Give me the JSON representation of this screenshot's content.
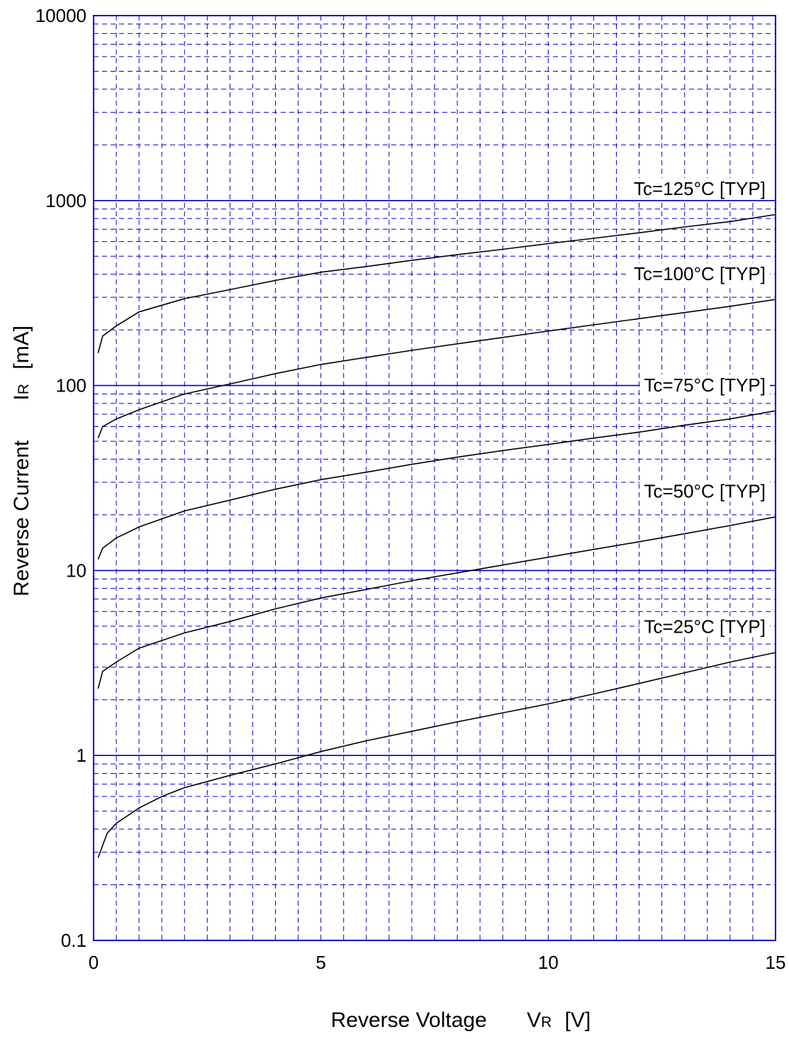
{
  "chart_data": {
    "type": "line",
    "xlabel": {
      "main": "Reverse Voltage",
      "symbol": "V",
      "subscript": "R",
      "unit": "[V]"
    },
    "ylabel": {
      "main": "Reverse Current",
      "symbol": "I",
      "subscript": "R",
      "unit": "[mA]"
    },
    "xlim": [
      0,
      15
    ],
    "ylim": [
      0.1,
      10000
    ],
    "y_scale": "log",
    "grid": true,
    "grid_color": "#0000cc",
    "line_color": "#000000",
    "x_ticks": [
      {
        "value": 0,
        "label": "0"
      },
      {
        "value": 5,
        "label": "5"
      },
      {
        "value": 10,
        "label": "10"
      },
      {
        "value": 15,
        "label": "15"
      }
    ],
    "y_ticks": [
      {
        "value": 0.1,
        "label": "0.1"
      },
      {
        "value": 1,
        "label": "1"
      },
      {
        "value": 10,
        "label": "10"
      },
      {
        "value": 100,
        "label": "100"
      },
      {
        "value": 1000,
        "label": "1000"
      },
      {
        "value": 10000,
        "label": "10000"
      }
    ],
    "series": [
      {
        "name": "Tc=125°C [TYP]",
        "x": [
          0.1,
          0.2,
          0.5,
          1,
          2,
          3,
          4,
          5,
          6,
          7,
          8,
          9,
          10,
          11,
          12,
          13,
          14,
          15
        ],
        "y": [
          150,
          185,
          210,
          250,
          295,
          330,
          370,
          410,
          440,
          475,
          510,
          545,
          585,
          625,
          670,
          720,
          770,
          840
        ]
      },
      {
        "name": "Tc=100°C [TYP]",
        "x": [
          0.1,
          0.2,
          0.5,
          1,
          2,
          3,
          4,
          5,
          6,
          7,
          8,
          9,
          10,
          11,
          12,
          13,
          14,
          15
        ],
        "y": [
          52,
          60,
          66,
          74,
          90,
          102,
          116,
          130,
          142,
          155,
          168,
          182,
          197,
          213,
          230,
          248,
          268,
          292
        ]
      },
      {
        "name": "Tc=75°C [TYP]",
        "x": [
          0.1,
          0.2,
          0.5,
          1,
          2,
          3,
          4,
          5,
          6,
          7,
          8,
          9,
          10,
          11,
          12,
          13,
          14,
          15
        ],
        "y": [
          11.5,
          13.2,
          15,
          17.2,
          21,
          24,
          27.5,
          31,
          34,
          37.5,
          41,
          44.5,
          48,
          52,
          56,
          61,
          66,
          73
        ]
      },
      {
        "name": "Tc=50°C [TYP]",
        "x": [
          0.1,
          0.2,
          0.5,
          1,
          2,
          3,
          4,
          5,
          6,
          7,
          8,
          9,
          10,
          11,
          12,
          13,
          14,
          15
        ],
        "y": [
          2.3,
          2.85,
          3.2,
          3.8,
          4.6,
          5.3,
          6.2,
          7.1,
          7.9,
          8.8,
          9.7,
          10.7,
          11.8,
          13,
          14.3,
          15.8,
          17.5,
          19.5
        ]
      },
      {
        "name": "Tc=25°C [TYP]",
        "x": [
          0.1,
          0.3,
          0.5,
          1,
          1.5,
          2,
          3,
          4,
          5,
          6,
          7,
          8,
          9,
          10,
          11,
          12,
          13,
          14,
          15
        ],
        "y": [
          0.28,
          0.38,
          0.43,
          0.52,
          0.6,
          0.67,
          0.78,
          0.9,
          1.05,
          1.2,
          1.35,
          1.52,
          1.7,
          1.9,
          2.15,
          2.45,
          2.8,
          3.2,
          3.6
        ]
      }
    ]
  }
}
